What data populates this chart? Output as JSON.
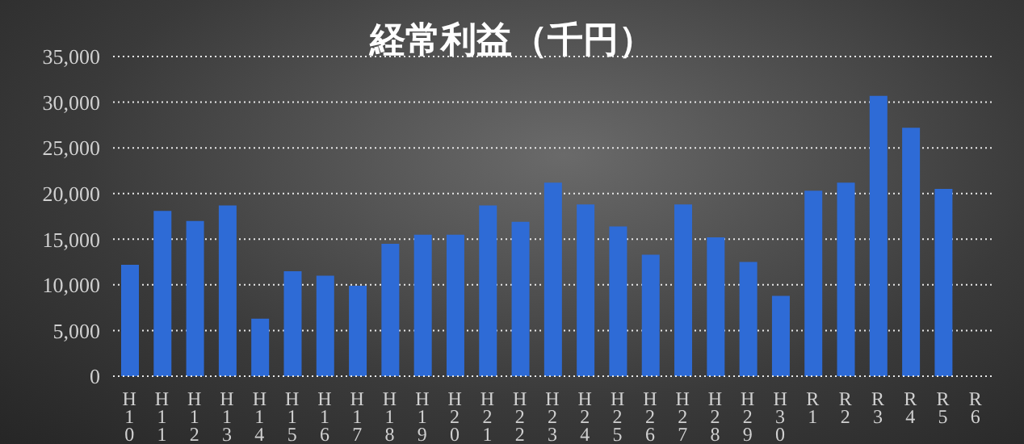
{
  "chart_data": {
    "type": "bar",
    "title": "経常利益（千円）",
    "categories": [
      "H10",
      "H11",
      "H12",
      "H13",
      "H14",
      "H15",
      "H16",
      "H17",
      "H18",
      "H19",
      "H20",
      "H21",
      "H22",
      "H23",
      "H24",
      "H25",
      "H26",
      "H27",
      "H28",
      "H29",
      "H30",
      "R1",
      "R2",
      "R3",
      "R4",
      "R5",
      "R6"
    ],
    "values": [
      12200,
      18100,
      17000,
      18700,
      6300,
      11500,
      11000,
      9900,
      14500,
      15500,
      15500,
      18700,
      16900,
      21200,
      18800,
      16400,
      13300,
      18800,
      15200,
      12500,
      8800,
      20300,
      21200,
      30700,
      27200,
      20500,
      null
    ],
    "color": "#2e6bd6",
    "ylim": [
      0,
      35000
    ],
    "yticks": [
      0,
      {
        "value": 5000,
        "label": "5,000"
      },
      {
        "value": 10000,
        "label": "10,000"
      },
      {
        "value": 15000,
        "label": "15,000"
      },
      {
        "value": 20000,
        "label": "20,000"
      },
      {
        "value": 25000,
        "label": "25,000"
      },
      {
        "value": 30000,
        "label": "30,000"
      },
      {
        "value": 35000,
        "label": "35,000"
      }
    ],
    "grid": "y"
  }
}
